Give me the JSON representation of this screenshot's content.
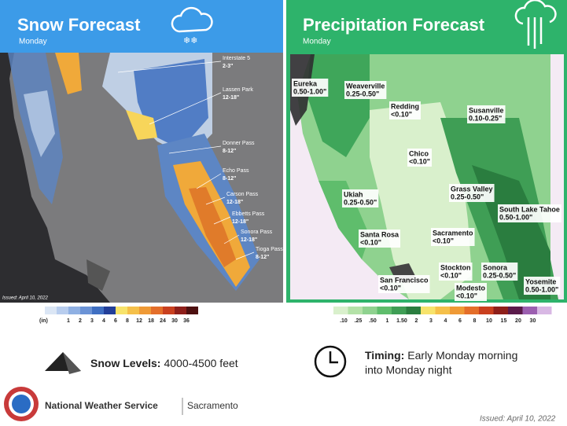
{
  "snow_panel": {
    "title": "Snow Forecast",
    "subtitle": "Monday",
    "issued_stamp": "Issued: April 10, 2022",
    "labels": [
      {
        "name": "Interstate 5",
        "amount": "2-3\""
      },
      {
        "name": "Lassen Park",
        "amount": "12-18\""
      },
      {
        "name": "Donner Pass",
        "amount": "8-12\""
      },
      {
        "name": "Echo Pass",
        "amount": "8-12\""
      },
      {
        "name": "Carson Pass",
        "amount": "12-18\""
      },
      {
        "name": "Ebbetts Pass",
        "amount": "12-18\""
      },
      {
        "name": "Sonora Pass",
        "amount": "12-18\""
      },
      {
        "name": "Tioga Pass",
        "amount": "8-12\""
      }
    ],
    "legend": {
      "unit": "(in)",
      "ticks": [
        "1",
        "2",
        "3",
        "4",
        "6",
        "8",
        "12",
        "18",
        "24",
        "30",
        "36"
      ]
    }
  },
  "precip_panel": {
    "title": "Precipitation Forecast",
    "subtitle": "Monday",
    "labels": [
      {
        "name": "Eureka",
        "amount": "0.50-1.00\""
      },
      {
        "name": "Weaverville",
        "amount": "0.25-0.50\""
      },
      {
        "name": "Redding",
        "amount": "<0.10\""
      },
      {
        "name": "Susanville",
        "amount": "0.10-0.25\""
      },
      {
        "name": "Chico",
        "amount": "<0.10\""
      },
      {
        "name": "Grass Valley",
        "amount": "0.25-0.50\""
      },
      {
        "name": "Ukiah",
        "amount": "0.25-0.50\""
      },
      {
        "name": "South Lake Tahoe",
        "amount": "0.50-1.00\""
      },
      {
        "name": "Santa Rosa",
        "amount": "<0.10\""
      },
      {
        "name": "Sacramento",
        "amount": "<0.10\""
      },
      {
        "name": "Stockton",
        "amount": "<0.10\""
      },
      {
        "name": "Sonora",
        "amount": "0.25-0.50\""
      },
      {
        "name": "San Francisco",
        "amount": "<0.10\""
      },
      {
        "name": "Modesto",
        "amount": "<0.10\""
      },
      {
        "name": "Yosemite",
        "amount": "0.50-1.00\""
      }
    ],
    "legend": {
      "ticks": [
        ".10",
        ".25",
        ".50",
        "1",
        "1.50",
        "2",
        "3",
        "4",
        "6",
        "8",
        "10",
        "15",
        "20",
        "30"
      ]
    }
  },
  "snow_levels": {
    "label": "Snow Levels:",
    "value": "4000-4500  feet"
  },
  "timing": {
    "label": "Timing:",
    "line1": "Early Monday morning",
    "line2": "into Monday night"
  },
  "footer": {
    "organization": "National Weather Service",
    "office": "Sacramento",
    "issued": "Issued: April 10, 2022"
  }
}
